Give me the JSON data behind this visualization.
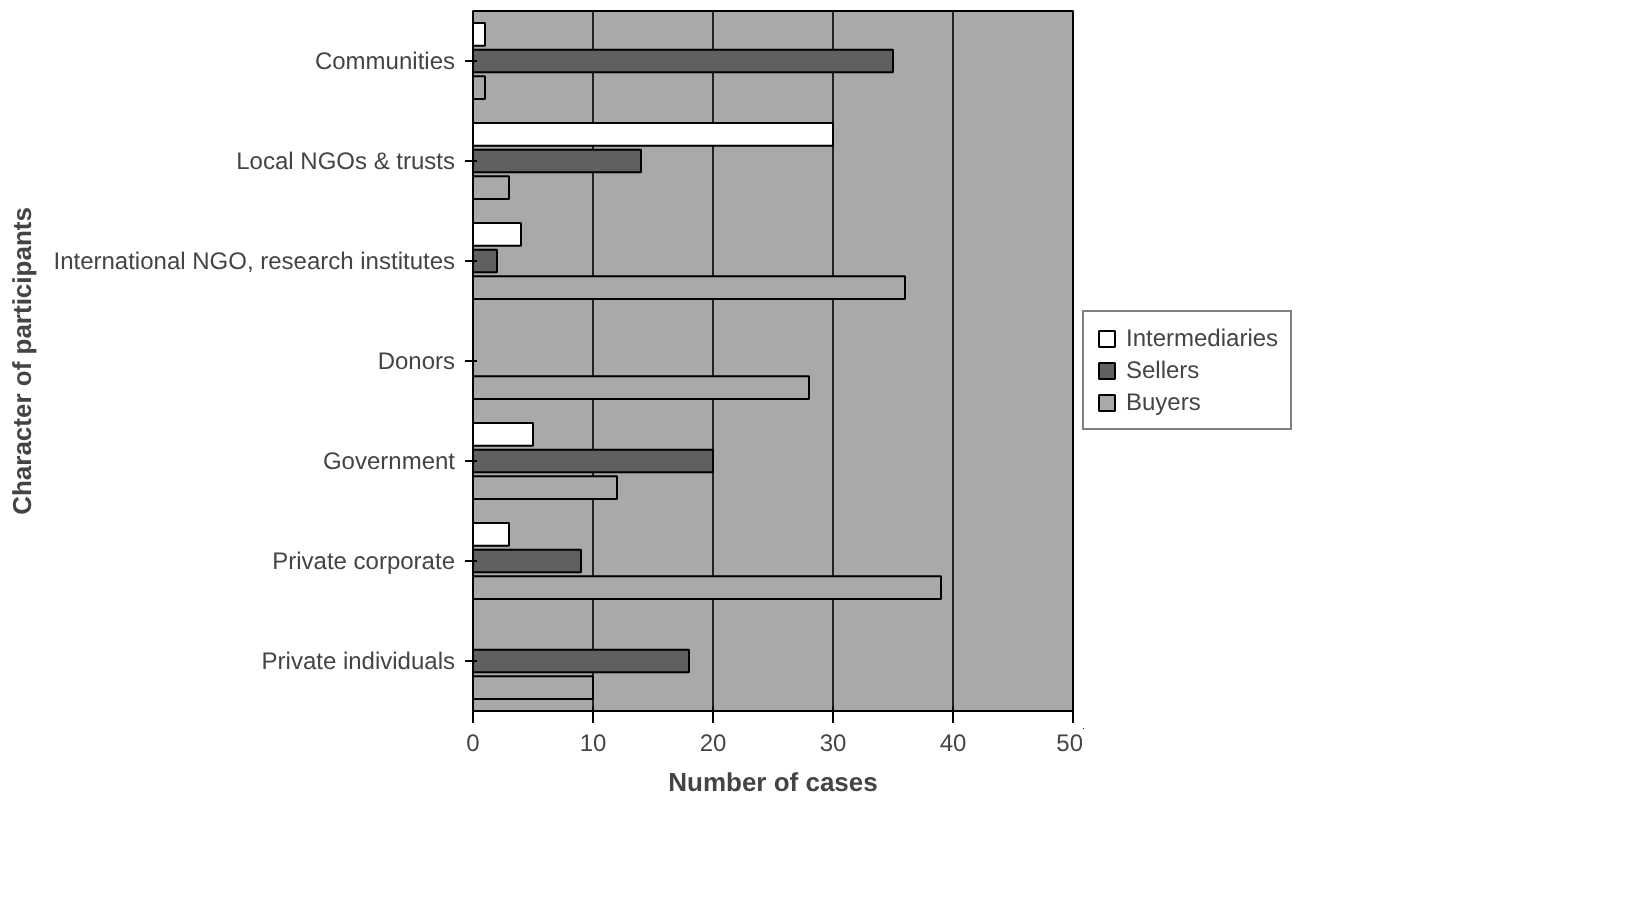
{
  "chart_data": {
    "type": "bar",
    "orientation": "horizontal",
    "xlabel": "Number of cases",
    "ylabel": "Character of participants",
    "categories": [
      "Communities",
      "Local NGOs & trusts",
      "International NGO, research institutes",
      "Donors",
      "Government",
      "Private corporate",
      "Private individuals"
    ],
    "series": [
      {
        "name": "Intermediaries",
        "color": "#ffffff",
        "values": [
          1,
          30,
          4,
          null,
          5,
          3,
          null
        ]
      },
      {
        "name": "Sellers",
        "color": "#606060",
        "values": [
          35,
          14,
          2,
          null,
          20,
          9,
          18
        ]
      },
      {
        "name": "Buyers",
        "color": "#a9a9a9",
        "values": [
          1,
          3,
          36,
          28,
          12,
          39,
          10
        ]
      }
    ],
    "xlim": [
      0,
      50
    ],
    "xticks": [
      0,
      10,
      20,
      30,
      40,
      50
    ],
    "grid": "x",
    "legend": "right"
  }
}
